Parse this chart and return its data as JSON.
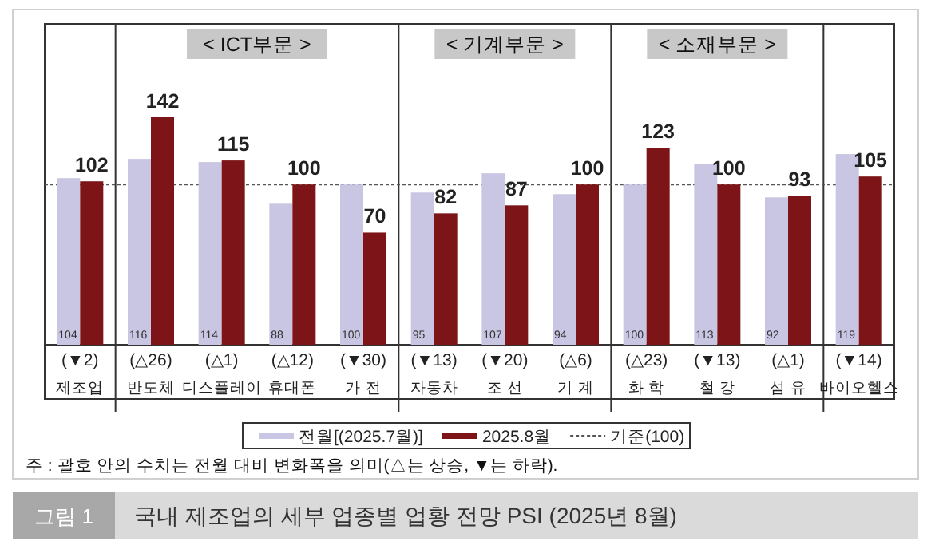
{
  "chart_data": {
    "type": "bar",
    "title": "국내 제조업의 세부 업종별 업황 전망 PSI (2025년 8월)",
    "categories": [
      "제조업",
      "반도체",
      "디스플레이",
      "휴대폰",
      "가 전",
      "자동차",
      "조 선",
      "기 계",
      "화 학",
      "철 강",
      "섬 유",
      "바이오헬스"
    ],
    "series": [
      {
        "name": "전월[(2025.7월)]",
        "color": "#c9c6e4",
        "values": [
          104,
          116,
          114,
          88,
          100,
          95,
          107,
          94,
          100,
          113,
          92,
          119
        ]
      },
      {
        "name": "2025.8월",
        "color": "#7d1518",
        "values": [
          102,
          142,
          115,
          100,
          70,
          82,
          87,
          100,
          123,
          100,
          93,
          105
        ]
      }
    ],
    "data_labels": true,
    "ref_lines": [
      {
        "axis": "y",
        "value": 100,
        "label": "기준(100)",
        "color": "#555555",
        "line_style": "dotted"
      }
    ],
    "legend": "bottom",
    "annotations": [
      "< ICT부문 >",
      "< 기계부문 >",
      "< 소재부문 >",
      "(▼2)",
      "(△26)",
      "(△1)",
      "(△12)",
      "(▼30)",
      "(▼13)",
      "(▼20)",
      "(△6)",
      "(△23)",
      "(▼13)",
      "(△1)",
      "(▼14)",
      "주 : 괄호 안의 수치는 전월 대비 변화폭을 의미(△는 상승, ▼는 하락).",
      "그림 1"
    ]
  }
}
